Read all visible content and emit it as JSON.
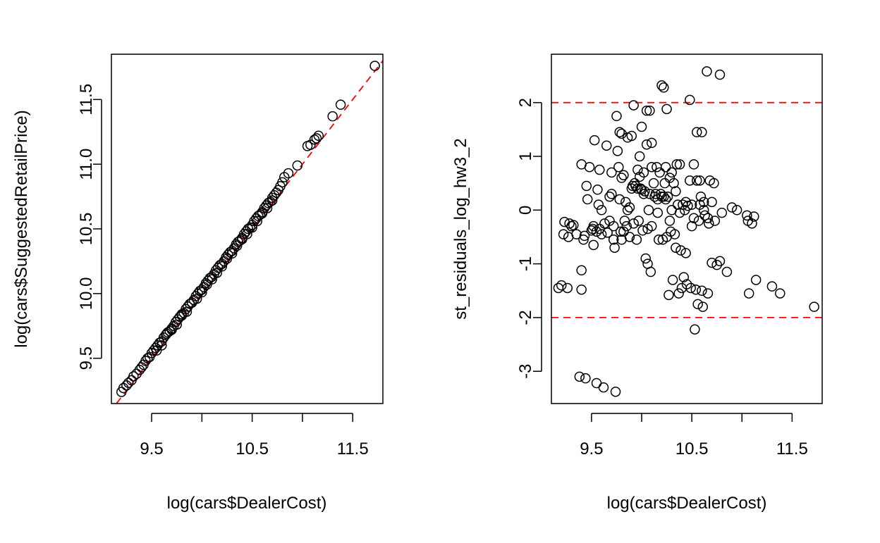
{
  "chart_data": [
    {
      "type": "scatter",
      "title": "",
      "xlabel": "log(cars$DealerCost)",
      "ylabel": "log(cars$SuggestedRetailPrice)",
      "xlim": [
        9.1,
        11.8
      ],
      "ylim": [
        9.15,
        11.85
      ],
      "x_ticks": [
        9.5,
        10.0,
        10.5,
        11.0,
        11.5
      ],
      "x_tick_labels": [
        "9.5",
        "",
        "10.5",
        "",
        "11.5"
      ],
      "y_ticks": [
        9.5,
        10.0,
        10.5,
        11.0,
        11.5
      ],
      "y_tick_labels": [
        "9.5",
        "10.0",
        "10.5",
        "11.0",
        "11.5"
      ],
      "grid": false,
      "reference_line": {
        "type": "identity",
        "color": "#ff0000",
        "style": "dashed",
        "intercept": 0,
        "slope": 1
      },
      "points": [
        [
          9.2,
          9.24
        ],
        [
          9.22,
          9.27
        ],
        [
          9.25,
          9.29
        ],
        [
          9.27,
          9.31
        ],
        [
          9.3,
          9.33
        ],
        [
          9.32,
          9.36
        ],
        [
          9.35,
          9.38
        ],
        [
          9.38,
          9.41
        ],
        [
          9.4,
          9.43
        ],
        [
          9.42,
          9.45
        ],
        [
          9.44,
          9.48
        ],
        [
          9.46,
          9.5
        ],
        [
          9.48,
          9.51
        ],
        [
          9.5,
          9.54
        ],
        [
          9.52,
          9.56
        ],
        [
          9.54,
          9.58
        ],
        [
          9.56,
          9.6
        ],
        [
          9.58,
          9.62
        ],
        [
          9.6,
          9.63
        ],
        [
          9.62,
          9.66
        ],
        [
          9.64,
          9.68
        ],
        [
          9.66,
          9.7
        ],
        [
          9.68,
          9.71
        ],
        [
          9.7,
          9.73
        ],
        [
          9.72,
          9.75
        ],
        [
          9.74,
          9.78
        ],
        [
          9.76,
          9.8
        ],
        [
          9.78,
          9.82
        ],
        [
          9.8,
          9.83
        ],
        [
          9.82,
          9.85
        ],
        [
          9.84,
          9.88
        ],
        [
          9.86,
          9.9
        ],
        [
          9.88,
          9.92
        ],
        [
          9.9,
          9.93
        ],
        [
          9.92,
          9.95
        ],
        [
          9.94,
          9.98
        ],
        [
          9.96,
          10.0
        ],
        [
          9.98,
          10.02
        ],
        [
          10.0,
          10.03
        ],
        [
          10.02,
          10.05
        ],
        [
          10.04,
          10.08
        ],
        [
          10.06,
          10.1
        ],
        [
          10.08,
          10.12
        ],
        [
          10.1,
          10.13
        ],
        [
          10.12,
          10.15
        ],
        [
          10.14,
          10.18
        ],
        [
          10.16,
          10.2
        ],
        [
          10.18,
          10.22
        ],
        [
          10.2,
          10.23
        ],
        [
          10.22,
          10.25
        ],
        [
          10.24,
          10.28
        ],
        [
          10.26,
          10.3
        ],
        [
          10.28,
          10.32
        ],
        [
          10.3,
          10.33
        ],
        [
          10.32,
          10.35
        ],
        [
          10.34,
          10.38
        ],
        [
          10.36,
          10.4
        ],
        [
          10.38,
          10.41
        ],
        [
          10.4,
          10.43
        ],
        [
          10.42,
          10.46
        ],
        [
          10.44,
          10.48
        ],
        [
          10.46,
          10.5
        ],
        [
          10.48,
          10.51
        ],
        [
          10.5,
          10.53
        ],
        [
          10.52,
          10.56
        ],
        [
          10.54,
          10.58
        ],
        [
          10.56,
          10.6
        ],
        [
          10.58,
          10.61
        ],
        [
          10.6,
          10.63
        ],
        [
          10.62,
          10.66
        ],
        [
          10.64,
          10.68
        ],
        [
          10.66,
          10.7
        ],
        [
          10.68,
          10.71
        ],
        [
          10.7,
          10.74
        ],
        [
          10.72,
          10.76
        ],
        [
          10.74,
          10.78
        ],
        [
          10.76,
          10.8
        ],
        [
          10.78,
          10.83
        ],
        [
          10.8,
          10.86
        ],
        [
          10.82,
          10.9
        ],
        [
          10.86,
          10.93
        ],
        [
          10.95,
          10.99
        ],
        [
          11.05,
          11.14
        ],
        [
          11.08,
          11.15
        ],
        [
          11.12,
          11.19
        ],
        [
          11.14,
          11.2
        ],
        [
          11.16,
          11.22
        ],
        [
          11.3,
          11.37
        ],
        [
          11.38,
          11.46
        ],
        [
          11.72,
          11.76
        ],
        [
          9.55,
          9.56
        ],
        [
          9.6,
          9.6
        ],
        [
          9.65,
          9.69
        ],
        [
          9.7,
          9.72
        ],
        [
          9.75,
          9.76
        ],
        [
          9.8,
          9.84
        ],
        [
          9.85,
          9.86
        ],
        [
          9.9,
          9.93
        ],
        [
          9.95,
          9.96
        ],
        [
          10.0,
          10.01
        ],
        [
          10.05,
          10.07
        ],
        [
          10.1,
          10.11
        ],
        [
          10.15,
          10.16
        ],
        [
          10.2,
          10.21
        ],
        [
          10.25,
          10.27
        ],
        [
          10.3,
          10.31
        ],
        [
          10.35,
          10.37
        ],
        [
          10.4,
          10.42
        ],
        [
          10.45,
          10.46
        ],
        [
          10.5,
          10.51
        ],
        [
          10.55,
          10.56
        ],
        [
          10.6,
          10.62
        ],
        [
          10.65,
          10.66
        ],
        [
          10.7,
          10.72
        ]
      ]
    },
    {
      "type": "scatter",
      "title": "",
      "xlabel": "log(cars$DealerCost)",
      "ylabel": "st_residuals_log_hw3_2",
      "xlim": [
        9.1,
        11.8
      ],
      "ylim": [
        -3.6,
        2.9
      ],
      "x_ticks": [
        9.5,
        10.0,
        10.5,
        11.0,
        11.5
      ],
      "x_tick_labels": [
        "9.5",
        "",
        "10.5",
        "",
        "11.5"
      ],
      "y_ticks": [
        -3,
        -2,
        -1,
        0,
        1,
        2
      ],
      "y_tick_labels": [
        "-3",
        "-2",
        "-1",
        "0",
        "1",
        "2"
      ],
      "grid": false,
      "reference_lines": [
        {
          "y": 2,
          "color": "#ff0000",
          "style": "dashed"
        },
        {
          "y": -2,
          "color": "#ff0000",
          "style": "dashed"
        }
      ],
      "points": [
        [
          9.17,
          -1.45
        ],
        [
          9.2,
          -1.4
        ],
        [
          9.22,
          -0.45
        ],
        [
          9.23,
          -0.22
        ],
        [
          9.26,
          -1.45
        ],
        [
          9.27,
          -0.5
        ],
        [
          9.28,
          -0.25
        ],
        [
          9.3,
          -0.3
        ],
        [
          9.32,
          -0.28
        ],
        [
          9.35,
          -0.45
        ],
        [
          9.38,
          -3.1
        ],
        [
          9.4,
          0.85
        ],
        [
          9.4,
          -1.12
        ],
        [
          9.4,
          -1.48
        ],
        [
          9.42,
          -0.55
        ],
        [
          9.43,
          -0.48
        ],
        [
          9.44,
          -3.13
        ],
        [
          9.45,
          0.45
        ],
        [
          9.46,
          0.2
        ],
        [
          9.48,
          0.8
        ],
        [
          9.5,
          -0.38
        ],
        [
          9.51,
          -0.35
        ],
        [
          9.52,
          -0.65
        ],
        [
          9.53,
          1.3
        ],
        [
          9.55,
          -0.4
        ],
        [
          9.55,
          -3.22
        ],
        [
          9.56,
          0.38
        ],
        [
          9.57,
          0.1
        ],
        [
          9.58,
          0.75
        ],
        [
          9.6,
          0.0
        ],
        [
          9.6,
          -0.45
        ],
        [
          9.62,
          -3.3
        ],
        [
          9.65,
          1.2
        ],
        [
          9.66,
          -0.42
        ],
        [
          9.68,
          -0.2
        ],
        [
          9.7,
          0.7
        ],
        [
          9.7,
          0.3
        ],
        [
          9.72,
          -0.3
        ],
        [
          9.73,
          -0.7
        ],
        [
          9.74,
          -3.38
        ],
        [
          9.75,
          1.75
        ],
        [
          9.76,
          1.1
        ],
        [
          9.77,
          0.8
        ],
        [
          9.78,
          1.45
        ],
        [
          9.78,
          0.2
        ],
        [
          9.79,
          -0.4
        ],
        [
          9.8,
          1.42
        ],
        [
          9.8,
          0.6
        ],
        [
          9.8,
          -0.55
        ],
        [
          9.82,
          0.65
        ],
        [
          9.83,
          -0.2
        ],
        [
          9.84,
          0.15
        ],
        [
          9.85,
          -0.3
        ],
        [
          9.86,
          1.35
        ],
        [
          9.88,
          0.05
        ],
        [
          9.88,
          -0.5
        ],
        [
          9.9,
          1.38
        ],
        [
          9.9,
          0.4
        ],
        [
          9.91,
          0.45
        ],
        [
          9.92,
          1.95
        ],
        [
          9.93,
          0.5
        ],
        [
          9.94,
          0.45
        ],
        [
          9.95,
          -0.55
        ],
        [
          9.96,
          0.75
        ],
        [
          9.96,
          0.4
        ],
        [
          9.97,
          -0.2
        ],
        [
          9.98,
          1.0
        ],
        [
          9.98,
          0.62
        ],
        [
          9.99,
          0.4
        ],
        [
          10.0,
          1.55
        ],
        [
          10.0,
          0.38
        ],
        [
          10.01,
          -0.38
        ],
        [
          10.02,
          0.7
        ],
        [
          10.03,
          0.35
        ],
        [
          10.04,
          -0.9
        ],
        [
          10.05,
          1.85
        ],
        [
          10.05,
          1.22
        ],
        [
          10.06,
          -1.0
        ],
        [
          10.07,
          0.0
        ],
        [
          10.08,
          1.85
        ],
        [
          10.08,
          0.3
        ],
        [
          10.09,
          -1.15
        ],
        [
          10.1,
          1.25
        ],
        [
          10.1,
          0.8
        ],
        [
          10.1,
          -0.3
        ],
        [
          10.12,
          0.5
        ],
        [
          10.13,
          0.25
        ],
        [
          10.15,
          0.8
        ],
        [
          10.16,
          0.2
        ],
        [
          10.17,
          -0.55
        ],
        [
          10.18,
          0.7
        ],
        [
          10.19,
          0.3
        ],
        [
          10.2,
          2.32
        ],
        [
          10.2,
          0.25
        ],
        [
          10.21,
          -0.55
        ],
        [
          10.22,
          2.28
        ],
        [
          10.23,
          0.5
        ],
        [
          10.24,
          0.8
        ],
        [
          10.24,
          0.2
        ],
        [
          10.25,
          1.88
        ],
        [
          10.25,
          -0.5
        ],
        [
          10.26,
          0.25
        ],
        [
          10.27,
          -1.58
        ],
        [
          10.28,
          0.6
        ],
        [
          10.29,
          -0.4
        ],
        [
          10.3,
          0.7
        ],
        [
          10.3,
          0.0
        ],
        [
          10.31,
          -1.3
        ],
        [
          10.32,
          0.5
        ],
        [
          10.33,
          -0.45
        ],
        [
          10.34,
          -0.7
        ],
        [
          10.35,
          0.85
        ],
        [
          10.36,
          0.1
        ],
        [
          10.37,
          -1.55
        ],
        [
          10.38,
          0.85
        ],
        [
          10.39,
          -0.75
        ],
        [
          10.4,
          -1.45
        ],
        [
          10.41,
          0.1
        ],
        [
          10.42,
          -1.25
        ],
        [
          10.43,
          0.0
        ],
        [
          10.44,
          -0.8
        ],
        [
          10.45,
          -1.38
        ],
        [
          10.46,
          0.08
        ],
        [
          10.48,
          2.05
        ],
        [
          10.48,
          0.55
        ],
        [
          10.49,
          -1.45
        ],
        [
          10.5,
          0.1
        ],
        [
          10.5,
          -0.3
        ],
        [
          10.52,
          0.85
        ],
        [
          10.53,
          -2.22
        ],
        [
          10.54,
          -1.48
        ],
        [
          10.55,
          1.45
        ],
        [
          10.55,
          0.55
        ],
        [
          10.56,
          -1.75
        ],
        [
          10.57,
          -0.2
        ],
        [
          10.58,
          0.1
        ],
        [
          10.59,
          0.25
        ],
        [
          10.6,
          -1.5
        ],
        [
          10.6,
          1.45
        ],
        [
          10.61,
          -1.8
        ],
        [
          10.62,
          0.0
        ],
        [
          10.63,
          -0.1
        ],
        [
          10.65,
          2.58
        ],
        [
          10.66,
          -1.55
        ],
        [
          10.67,
          -0.25
        ],
        [
          10.68,
          0.55
        ],
        [
          10.7,
          -0.98
        ],
        [
          10.7,
          0.15
        ],
        [
          10.72,
          0.5
        ],
        [
          10.73,
          -0.2
        ],
        [
          10.75,
          -1.02
        ],
        [
          10.78,
          -0.95
        ],
        [
          10.78,
          2.52
        ],
        [
          10.8,
          -0.05
        ],
        [
          10.85,
          -1.15
        ],
        [
          10.9,
          0.05
        ],
        [
          10.95,
          0.0
        ],
        [
          11.05,
          -0.1
        ],
        [
          11.06,
          -0.2
        ],
        [
          11.07,
          -1.55
        ],
        [
          11.1,
          -0.25
        ],
        [
          11.12,
          -0.12
        ],
        [
          11.14,
          -1.3
        ],
        [
          11.3,
          -1.42
        ],
        [
          11.38,
          -1.55
        ],
        [
          11.72,
          -1.8
        ],
        [
          9.52,
          -0.3
        ],
        [
          9.58,
          -0.35
        ],
        [
          9.63,
          -0.25
        ],
        [
          9.68,
          0.25
        ],
        [
          9.72,
          -0.55
        ],
        [
          9.82,
          -0.4
        ],
        [
          9.86,
          0.0
        ],
        [
          9.92,
          -0.25
        ],
        [
          10.02,
          0.3
        ],
        [
          10.06,
          -0.35
        ],
        [
          10.14,
          0.3
        ],
        [
          10.16,
          -0.05
        ],
        [
          10.22,
          0.25
        ],
        [
          10.28,
          -0.2
        ],
        [
          10.34,
          0.35
        ],
        [
          10.38,
          -0.05
        ],
        [
          10.44,
          0.15
        ],
        [
          10.52,
          -0.15
        ],
        [
          10.58,
          0.55
        ],
        [
          10.62,
          0.15
        ],
        [
          10.66,
          -0.15
        ]
      ]
    }
  ]
}
